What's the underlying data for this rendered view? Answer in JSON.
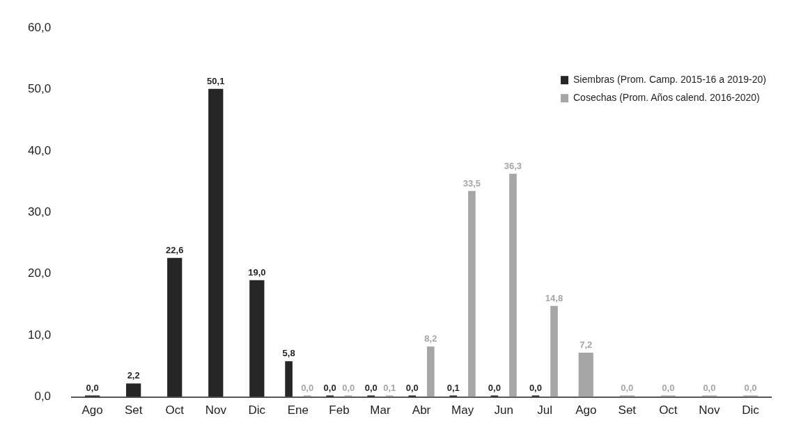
{
  "chart_data": {
    "type": "bar",
    "categories": [
      "Ago",
      "Set",
      "Oct",
      "Nov",
      "Dic",
      "Ene",
      "Feb",
      "Mar",
      "Abr",
      "May",
      "Jun",
      "Jul",
      "Ago",
      "Set",
      "Oct",
      "Nov",
      "Dic"
    ],
    "series": [
      {
        "name": "Siembras (Prom. Camp. 2015-16 a 2019-20)",
        "color": "#262626",
        "values": [
          0.0,
          2.2,
          22.6,
          50.1,
          19.0,
          5.8,
          0.0,
          0.0,
          0.0,
          0.1,
          0.0,
          0.0,
          null,
          null,
          null,
          null,
          null
        ],
        "value_labels": [
          "0,0",
          "2,2",
          "22,6",
          "50,1",
          "19,0",
          "5,8",
          "0,0",
          "0,0",
          "0,0",
          "0,1",
          "0,0",
          "0,0",
          null,
          null,
          null,
          null,
          null
        ]
      },
      {
        "name": "Cosechas (Prom. Años calend. 2016-2020)",
        "color": "#a6a6a6",
        "values": [
          null,
          null,
          null,
          null,
          null,
          0.0,
          0.0,
          0.1,
          8.2,
          33.5,
          36.3,
          14.8,
          7.2,
          0.0,
          0.0,
          0.0,
          0.0
        ],
        "value_labels": [
          null,
          null,
          null,
          null,
          null,
          "0,0",
          "0,0",
          "0,1",
          "8,2",
          "33,5",
          "36,3",
          "14,8",
          "7,2",
          "0,0",
          "0,0",
          "0,0",
          "0,0"
        ]
      }
    ],
    "ylim": [
      0,
      60
    ],
    "yticks": [
      {
        "value": 0,
        "label": "0,0"
      },
      {
        "value": 10,
        "label": "10,0"
      },
      {
        "value": 20,
        "label": "20,0"
      },
      {
        "value": 30,
        "label": "30,0"
      },
      {
        "value": 40,
        "label": "40,0"
      },
      {
        "value": 50,
        "label": "50,0"
      },
      {
        "value": 60,
        "label": "60,0"
      }
    ],
    "grid": false,
    "legend": "top right"
  }
}
